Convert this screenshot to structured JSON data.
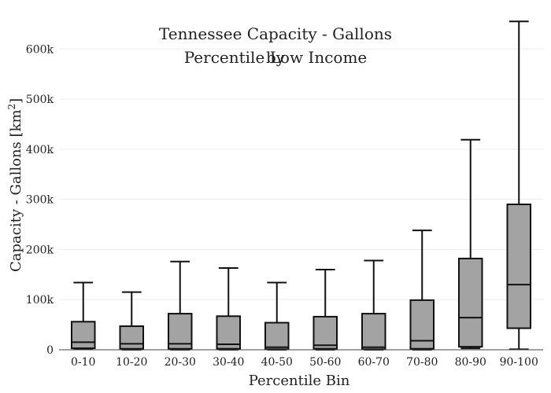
{
  "chart_data": {
    "type": "box",
    "title_line1": "Tennessee Capacity - Gallons by",
    "title_line2": "Percentile Low Income",
    "xlabel": "Percentile Bin",
    "ylabel_main": "Capacity - Gallons  [km",
    "ylabel_sup": "2",
    "ylabel_end": "]",
    "ylim": [
      0,
      660000
    ],
    "yticks": [
      0,
      100000,
      200000,
      300000,
      400000,
      500000,
      600000
    ],
    "ytick_labels": [
      "0",
      "100k",
      "200k",
      "300k",
      "400k",
      "500k",
      "600k"
    ],
    "categories": [
      "0-10",
      "10-20",
      "20-30",
      "30-40",
      "40-50",
      "50-60",
      "60-70",
      "70-80",
      "80-90",
      "90-100"
    ],
    "boxes": [
      {
        "min": 1000,
        "q1": 3000,
        "median": 15000,
        "q3": 56000,
        "max": 134000
      },
      {
        "min": 0,
        "q1": 2000,
        "median": 12000,
        "q3": 47000,
        "max": 115000
      },
      {
        "min": 0,
        "q1": 2000,
        "median": 12000,
        "q3": 72000,
        "max": 176000
      },
      {
        "min": 0,
        "q1": 2000,
        "median": 11000,
        "q3": 67000,
        "max": 163000
      },
      {
        "min": 0,
        "q1": 1000,
        "median": 5000,
        "q3": 54000,
        "max": 134000
      },
      {
        "min": 0,
        "q1": 2000,
        "median": 9000,
        "q3": 66000,
        "max": 160000
      },
      {
        "min": 0,
        "q1": 1000,
        "median": 5000,
        "q3": 72000,
        "max": 178000
      },
      {
        "min": 0,
        "q1": 2000,
        "median": 18000,
        "q3": 99000,
        "max": 238000
      },
      {
        "min": 3000,
        "q1": 6000,
        "median": 64000,
        "q3": 182000,
        "max": 419000
      },
      {
        "min": 1000,
        "q1": 43000,
        "median": 130000,
        "q3": 290000,
        "max": 655000
      }
    ],
    "box_fill": "#a3a3a3",
    "box_stroke": "#111111",
    "grid": true
  }
}
